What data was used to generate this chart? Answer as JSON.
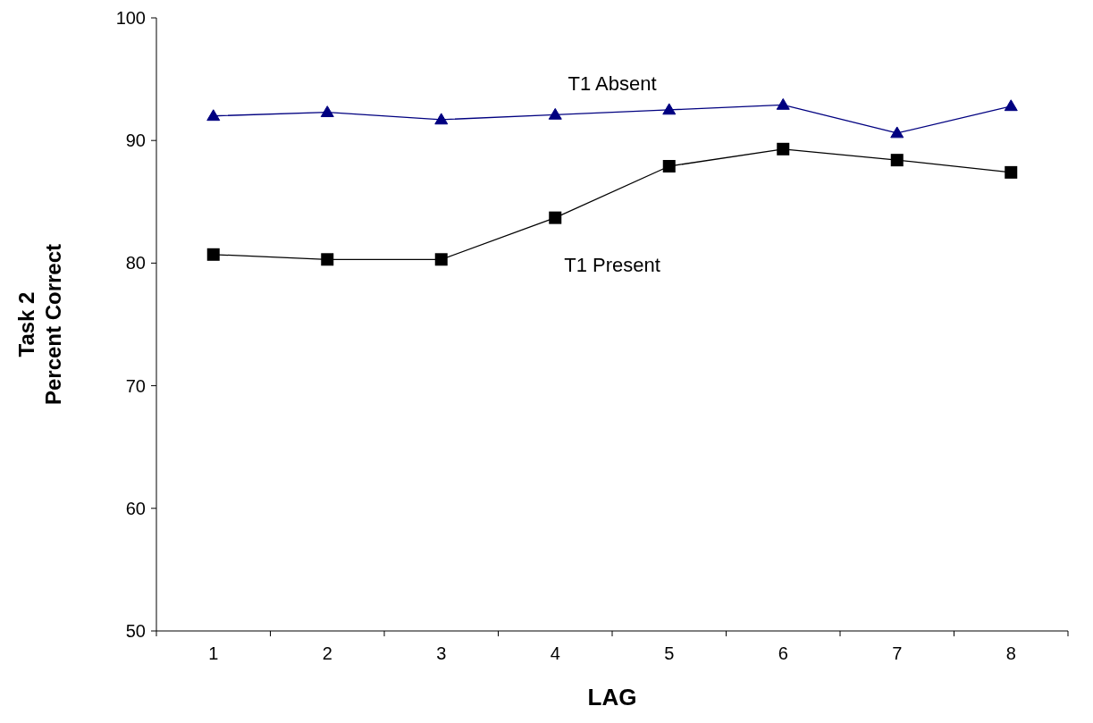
{
  "chart_data": {
    "type": "line",
    "xlabel": "LAG",
    "ylabel": "Task 2\nPercent Correct",
    "categories": [
      "1",
      "2",
      "3",
      "4",
      "5",
      "6",
      "7",
      "8"
    ],
    "ylim": [
      50,
      100
    ],
    "yticks": [
      50,
      60,
      70,
      80,
      90,
      100
    ],
    "grid": false,
    "line_style": "solid",
    "series": [
      {
        "name": "T1 Absent",
        "color": "#000080",
        "marker": "triangle",
        "values": [
          92.0,
          92.3,
          91.7,
          92.1,
          92.5,
          92.9,
          90.6,
          92.8
        ]
      },
      {
        "name": "T1 Present",
        "color": "#000000",
        "marker": "square",
        "values": [
          80.7,
          80.3,
          80.3,
          83.7,
          87.9,
          89.3,
          88.4,
          87.4
        ]
      }
    ]
  }
}
